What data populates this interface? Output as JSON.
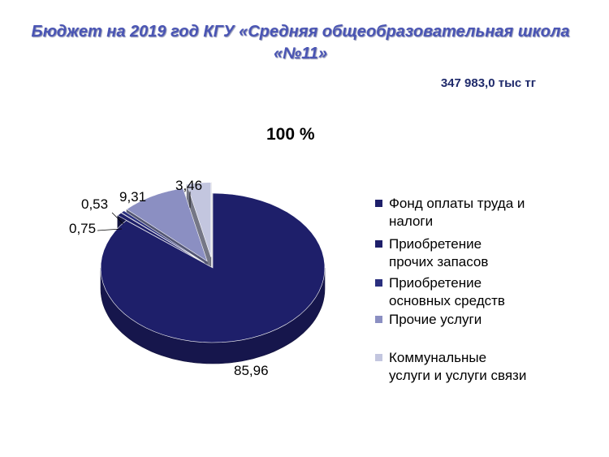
{
  "title_line1": "Бюджет на 2019 год  КГУ «Средняя общеобразовательная школа",
  "title_line2": "«№11»",
  "total": "347 983,0 тыс тг",
  "percent_label": "100 %",
  "colors": {
    "title": "#4a55b4",
    "slice1": "#1e1f6a",
    "slice2": "#1e1f6a",
    "slice3": "#2a2f7e",
    "slice4": "#8b8fc2",
    "slice5": "#c3c6df"
  },
  "chart_data": {
    "type": "pie",
    "style": "3d-exploded",
    "categories": [
      "Фонд оплаты труда и налоги",
      "Приобретение прочих запасов",
      "Приобретение основных средств",
      "Прочие услуги",
      "Коммунальные услуги и услуги связи"
    ],
    "values": [
      85.96,
      0.75,
      0.53,
      9.31,
      3.46
    ],
    "data_labels": [
      "85,96",
      "0,75",
      "0,53",
      "9,31",
      "3,46"
    ],
    "legend_position": "right"
  },
  "legend": [
    {
      "line1": "Фонд оплаты труда и",
      "line2": "налоги"
    },
    {
      "line1": "Приобретение",
      "line2": "прочих запасов"
    },
    {
      "line1": "Приобретение",
      "line2": "основных средств"
    },
    {
      "line1": "Прочие услуги",
      "line2": ""
    },
    {
      "line1": "Коммунальные",
      "line2": "услуги и услуги связи"
    }
  ]
}
